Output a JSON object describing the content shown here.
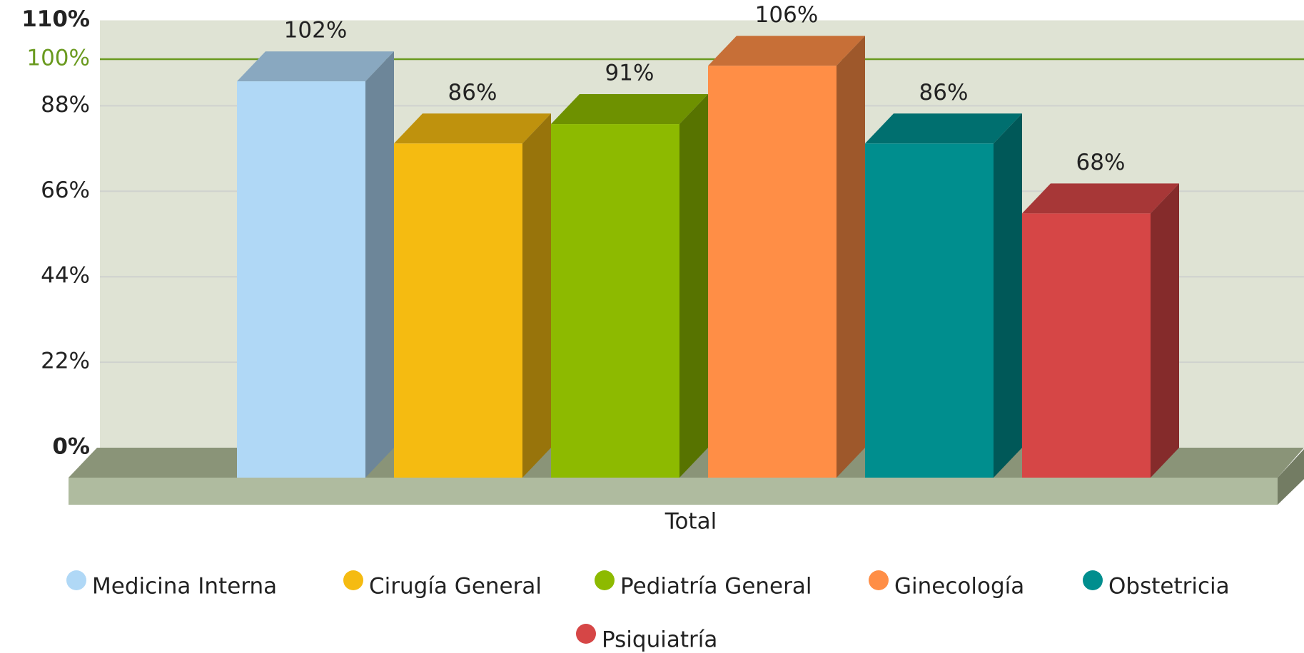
{
  "chart_data": {
    "type": "bar3d",
    "categories": [
      "Total"
    ],
    "x_label": "Total",
    "series": [
      {
        "name": "Medicina Interna",
        "color": "#b0d8f6",
        "values": [
          102
        ],
        "value_labels": [
          "102%"
        ]
      },
      {
        "name": "Cirugía General",
        "color": "#f5bb11",
        "values": [
          86
        ],
        "value_labels": [
          "86%"
        ]
      },
      {
        "name": "Pediatría General",
        "color": "#8dba00",
        "values": [
          91
        ],
        "value_labels": [
          "91%"
        ]
      },
      {
        "name": "Ginecología",
        "color": "#ff8e46",
        "values": [
          106
        ],
        "value_labels": [
          "106%"
        ]
      },
      {
        "name": "Obstetricia",
        "color": "#008e8e",
        "values": [
          86
        ],
        "value_labels": [
          "86%"
        ]
      },
      {
        "name": "Psiquiatría",
        "color": "#d64646",
        "values": [
          68
        ],
        "value_labels": [
          "68%"
        ]
      }
    ],
    "ylim": [
      0,
      110
    ],
    "yticks": [
      {
        "value": 0,
        "label": "0%"
      },
      {
        "value": 22,
        "label": "22%"
      },
      {
        "value": 44,
        "label": "44%"
      },
      {
        "value": 66,
        "label": "66%"
      },
      {
        "value": 88,
        "label": "88%"
      },
      {
        "value": 110,
        "label": "110%"
      }
    ],
    "reference_line": {
      "value": 100,
      "label": "100%",
      "color": "#6a9a1f"
    },
    "grid": true
  }
}
